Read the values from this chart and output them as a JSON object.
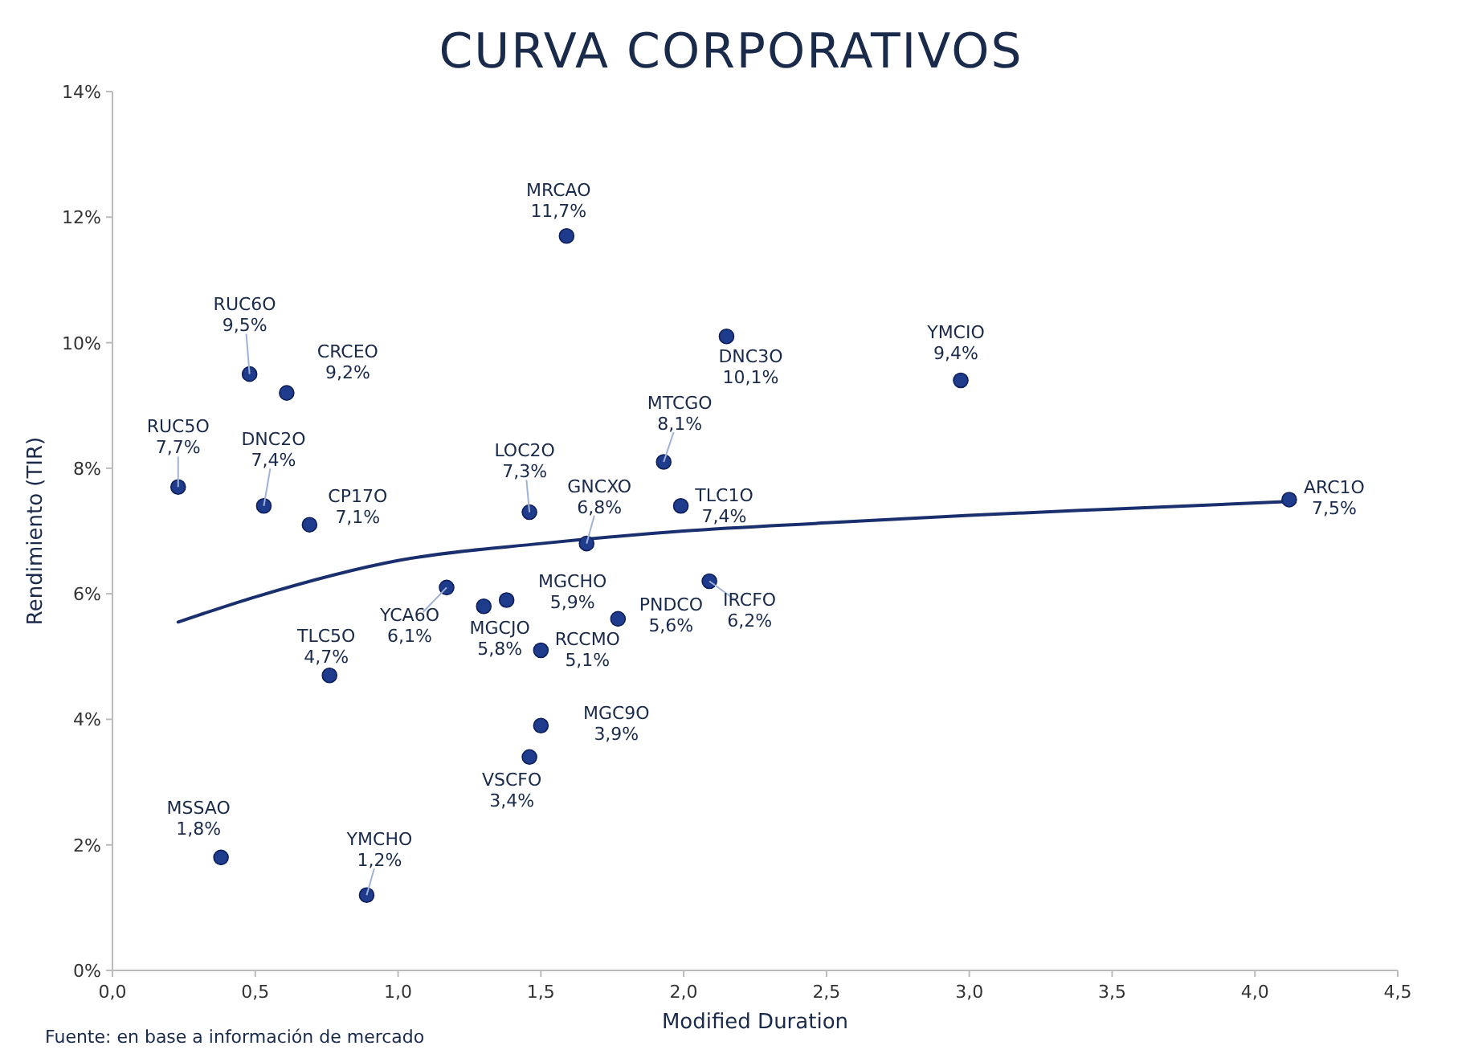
{
  "chart_data": {
    "type": "scatter",
    "title": "CURVA CORPORATIVOS",
    "xlabel": "Modified Duration",
    "ylabel": "Rendimiento (TIR)",
    "xlim": [
      0,
      4.5
    ],
    "ylim": [
      0,
      14
    ],
    "xticks": [
      {
        "value": 0,
        "label": "0,0"
      },
      {
        "value": 0.5,
        "label": "0,5"
      },
      {
        "value": 1,
        "label": "1,0"
      },
      {
        "value": 1.5,
        "label": "1,5"
      },
      {
        "value": 2,
        "label": "2,0"
      },
      {
        "value": 2.5,
        "label": "2,5"
      },
      {
        "value": 3,
        "label": "3,0"
      },
      {
        "value": 3.5,
        "label": "3,5"
      },
      {
        "value": 4,
        "label": "4,0"
      },
      {
        "value": 4.5,
        "label": "4,5"
      }
    ],
    "yticks": [
      {
        "value": 0,
        "label": "0%"
      },
      {
        "value": 2,
        "label": "2%"
      },
      {
        "value": 4,
        "label": "4%"
      },
      {
        "value": 6,
        "label": "6%"
      },
      {
        "value": 8,
        "label": "8%"
      },
      {
        "value": 10,
        "label": "10%"
      },
      {
        "value": 12,
        "label": "12%"
      },
      {
        "value": 14,
        "label": "14%"
      }
    ],
    "grid": false,
    "marker": "circle",
    "series": [
      {
        "color": "#1f3b8c",
        "x": [
          1.59,
          0.48,
          0.61,
          2.15,
          2.97,
          0.23,
          0.53,
          0.69,
          1.46,
          1.93,
          1.99,
          1.66,
          4.12,
          2.09,
          1.17,
          1.3,
          1.38,
          1.77,
          1.5,
          0.76,
          1.5,
          1.46,
          0.38,
          0.89
        ],
        "values": [
          11.7,
          9.5,
          9.2,
          10.1,
          9.4,
          7.7,
          7.4,
          7.1,
          7.3,
          8.1,
          7.4,
          6.8,
          7.5,
          6.2,
          6.1,
          5.8,
          5.9,
          5.6,
          5.1,
          4.7,
          3.9,
          3.4,
          1.8,
          1.2
        ]
      },
      {
        "type": "line",
        "color": "#1a2f6e",
        "marker": "none",
        "line_style": "solid",
        "x": [
          0.23,
          0.5,
          1,
          1.5,
          2,
          2.5,
          3,
          3.5,
          4.12
        ],
        "values": [
          5.55,
          5.95,
          6.53,
          6.8,
          7.0,
          7.13,
          7.25,
          7.35,
          7.47
        ]
      }
    ],
    "annotations": [
      {
        "text": "MRCAO\n11,7%",
        "x": 1.59,
        "y": 11.7
      },
      {
        "text": "RUC6O\n9,5%",
        "x": 0.48,
        "y": 9.5
      },
      {
        "text": "CRCEO\n9,2%",
        "x": 0.61,
        "y": 9.2
      },
      {
        "text": "DNC3O\n10,1%",
        "x": 2.15,
        "y": 10.1
      },
      {
        "text": "YMCIO\n9,4%",
        "x": 2.97,
        "y": 9.4
      },
      {
        "text": "RUC5O\n7,7%",
        "x": 0.23,
        "y": 7.7
      },
      {
        "text": "DNC2O\n7,4%",
        "x": 0.53,
        "y": 7.4
      },
      {
        "text": "CP17O\n7,1%",
        "x": 0.69,
        "y": 7.1
      },
      {
        "text": "LOC2O\n7,3%",
        "x": 1.46,
        "y": 7.3
      },
      {
        "text": "MTCGO\n8,1%",
        "x": 1.93,
        "y": 8.1
      },
      {
        "text": "TLC1O\n7,4%",
        "x": 1.99,
        "y": 7.4
      },
      {
        "text": "GNCXO\n6,8%",
        "x": 1.66,
        "y": 6.8
      },
      {
        "text": "ARC1O\n7,5%",
        "x": 4.12,
        "y": 7.5
      },
      {
        "text": "IRCFO\n6,2%",
        "x": 2.09,
        "y": 6.2
      },
      {
        "text": "YCA6O\n6,1%",
        "x": 1.17,
        "y": 6.1
      },
      {
        "text": "MGCJO\n5,8%",
        "x": 1.3,
        "y": 5.8
      },
      {
        "text": "MGCHO\n5,9%",
        "x": 1.38,
        "y": 5.9
      },
      {
        "text": "PNDCO\n5,6%",
        "x": 1.77,
        "y": 5.6
      },
      {
        "text": "RCCMO\n5,1%",
        "x": 1.5,
        "y": 5.1
      },
      {
        "text": "TLC5O\n4,7%",
        "x": 0.76,
        "y": 4.7
      },
      {
        "text": "MGC9O\n3,9%",
        "x": 1.5,
        "y": 3.9
      },
      {
        "text": "VSCFO\n3,4%",
        "x": 1.46,
        "y": 3.4
      },
      {
        "text": "MSSAO\n1,8%",
        "x": 0.38,
        "y": 1.8
      },
      {
        "text": "YMCHO\n1,2%",
        "x": 0.89,
        "y": 1.2
      },
      "Fuente: en base a información de mercado"
    ]
  }
}
